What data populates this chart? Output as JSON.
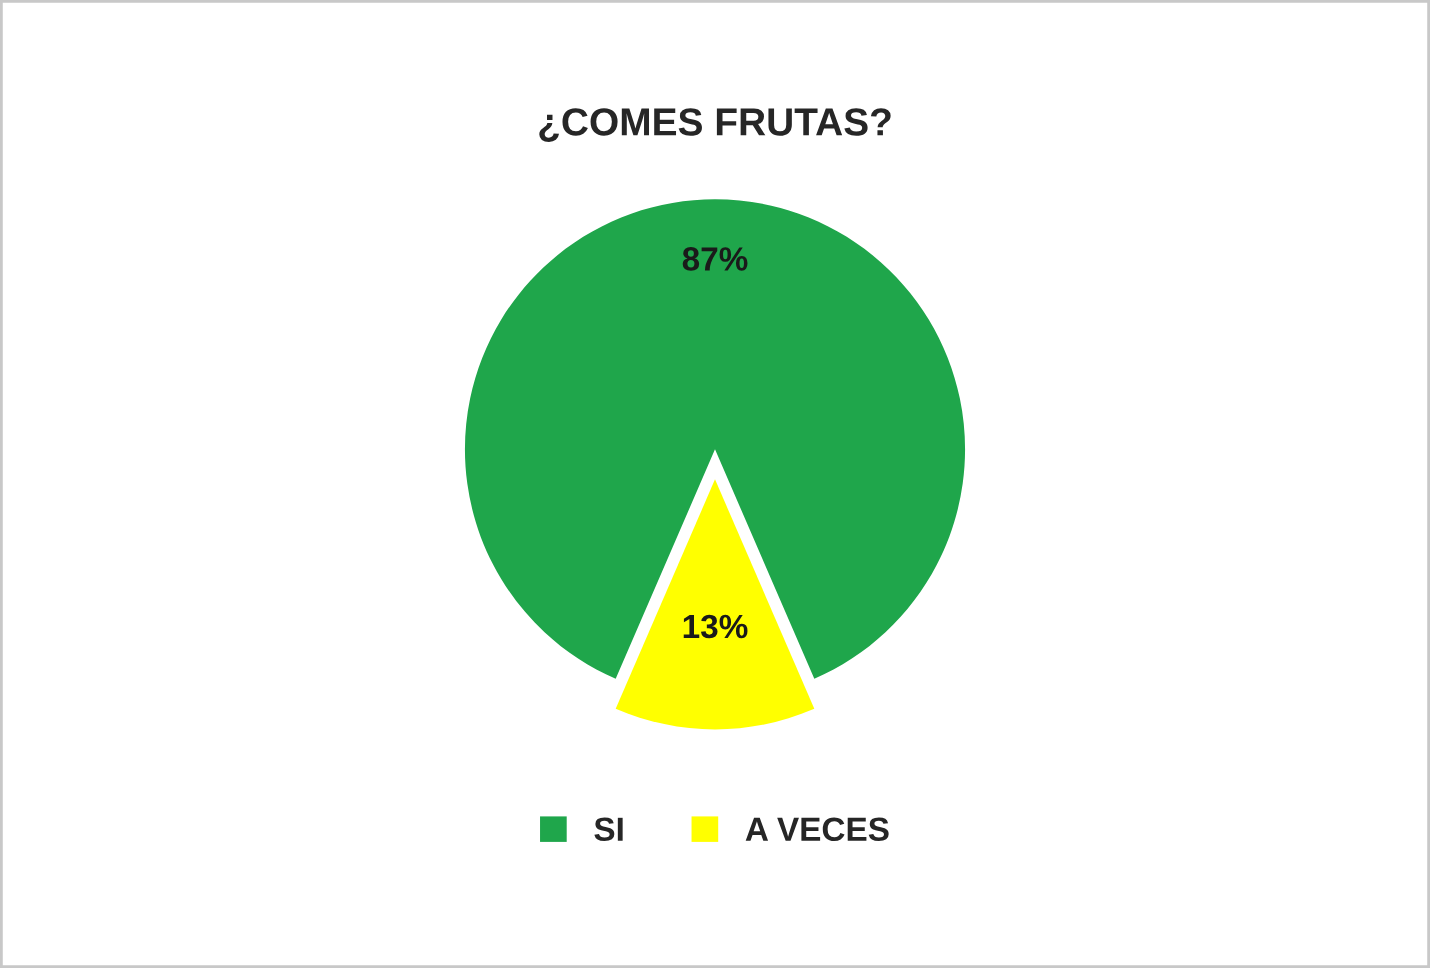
{
  "chart_data": {
    "type": "pie",
    "title": "¿COMES FRUTAS?",
    "categories": [
      "SI",
      "A VECES"
    ],
    "values": [
      87,
      13
    ],
    "colors": [
      "#1fa64b",
      "#ffff00"
    ],
    "value_labels": [
      "87%",
      "13%"
    ],
    "legend": "bottom"
  }
}
